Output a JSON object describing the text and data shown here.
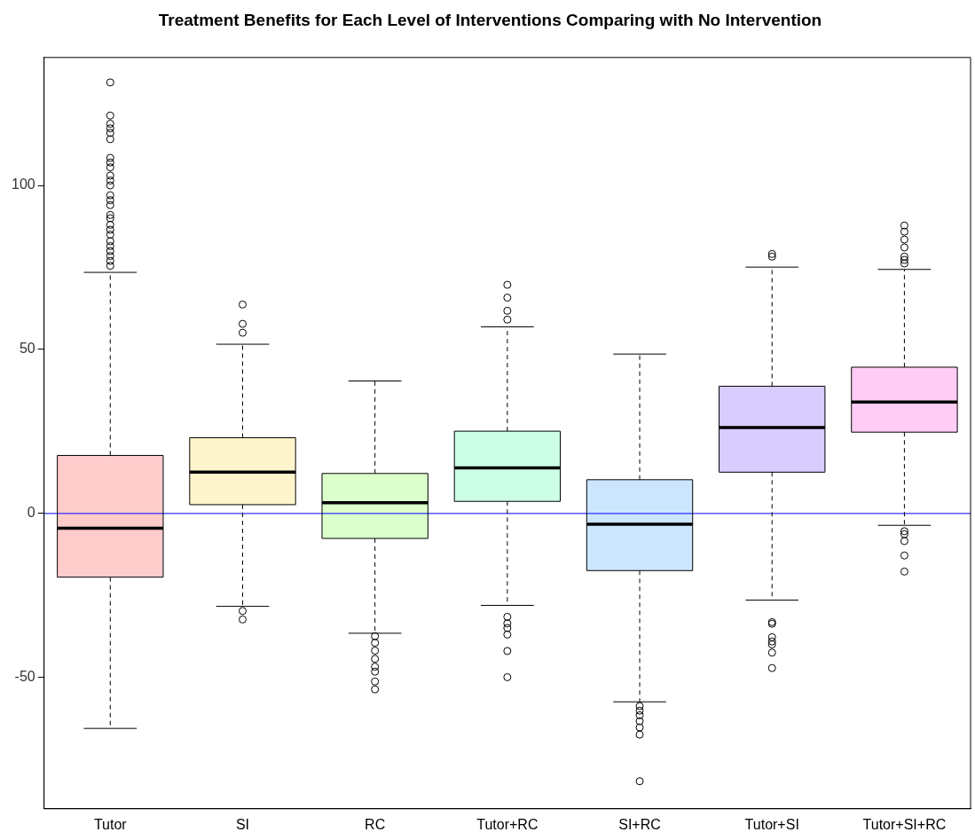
{
  "chart_data": {
    "type": "box",
    "title": "Treatment Benefits for Each Level of Interventions Comparing with No Intervention",
    "categories": [
      "Tutor",
      "SI",
      "RC",
      "Tutor+RC",
      "SI+RC",
      "Tutor+SI",
      "Tutor+SI+RC"
    ],
    "colors": [
      "#ffcccc",
      "#fff5cc",
      "#dcffcc",
      "#ccffe6",
      "#cce6ff",
      "#d9ccff",
      "#ffccf5"
    ],
    "boxes": [
      {
        "low": -65.5,
        "q1": -19.4,
        "median": -4.5,
        "q3": 17.7,
        "high": 73.5,
        "outliers": [
          131.4,
          121.3,
          118.8,
          117.4,
          116,
          114.1,
          108.4,
          107,
          105.5,
          103,
          101.5,
          100,
          97,
          95.5,
          94,
          91,
          90,
          88,
          86.5,
          85,
          83,
          81.5,
          80,
          78.5,
          77,
          75.5
        ]
      },
      {
        "low": -28.3,
        "q1": 2.7,
        "median": 12.6,
        "q3": 23.1,
        "high": 51.6,
        "outliers": [
          63.7,
          57.8,
          55.1,
          -29.7,
          -32.3
        ]
      },
      {
        "low": -36.5,
        "q1": -7.6,
        "median": 3.3,
        "q3": 12.2,
        "high": 40.4,
        "outliers": [
          -37.4,
          -39.4,
          -41.8,
          -44.3,
          -46.7,
          -48.2,
          -51.2,
          -53.6
        ]
      },
      {
        "low": -28,
        "q1": 3.7,
        "median": 13.9,
        "q3": 25.1,
        "high": 56.9,
        "outliers": [
          69.7,
          65.8,
          61.8,
          59.1,
          -31.5,
          -33.5,
          -34.9,
          -36.9,
          -41.9,
          -49.9
        ]
      },
      {
        "low": -57.4,
        "q1": -17.4,
        "median": -3.3,
        "q3": 10.3,
        "high": 48.6,
        "outliers": [
          -58.7,
          -60.1,
          -61.5,
          -63.3,
          -65.2,
          -67.4,
          -81.6
        ]
      },
      {
        "low": -26.4,
        "q1": 12.6,
        "median": 26.2,
        "q3": 38.8,
        "high": 75.1,
        "outliers": [
          79.1,
          78.3,
          -33.1,
          -33.6,
          -37.7,
          -39,
          -39.9,
          -42.4,
          -47.1
        ]
      },
      {
        "low": -3.6,
        "q1": 24.8,
        "median": 34,
        "q3": 44.6,
        "high": 74.4,
        "outliers": [
          87.8,
          85.9,
          83.5,
          81.1,
          78.3,
          77.3,
          76.2,
          -5.4,
          -6.3,
          -8.4,
          -12.8,
          -17.7
        ]
      }
    ],
    "ylim": [
      -90,
      139
    ],
    "yticks": [
      -50,
      0,
      50,
      100
    ],
    "grid": false,
    "legend": false,
    "marker": "circle",
    "line_style": "dashed",
    "ref_lines": [
      {
        "axis": "y",
        "value": 0,
        "color": "#0000ff"
      }
    ]
  }
}
